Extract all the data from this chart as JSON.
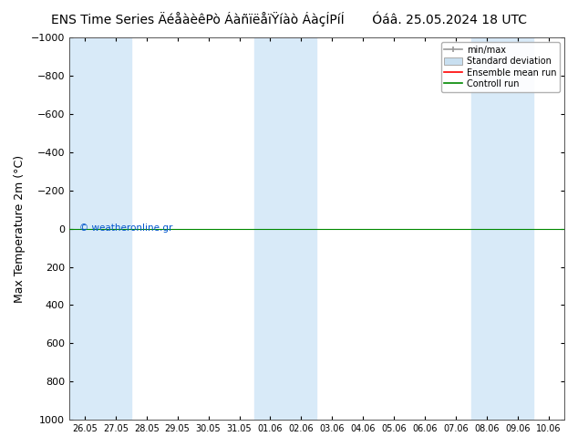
{
  "title": "ENS Time Series ÄéåàèêPò ÁàñïëåïŸíàò ÁàçÍPíÍ       Óáâ. 25.05.2024 18 UTC",
  "ylabel": "Max Temperature 2m (°C)",
  "ylim_min": -1000,
  "ylim_max": 1000,
  "yticks": [
    -1000,
    -800,
    -600,
    -400,
    -200,
    0,
    200,
    400,
    600,
    800,
    1000
  ],
  "xtick_labels": [
    "26.05",
    "27.05",
    "28.05",
    "29.05",
    "30.05",
    "31.05",
    "01.06",
    "02.06",
    "03.06",
    "04.06",
    "05.06",
    "06.06",
    "07.06",
    "08.06",
    "09.06",
    "10.06"
  ],
  "background_color": "#ffffff",
  "plot_bg_color": "#ffffff",
  "shaded_indices": [
    0,
    1,
    6,
    7,
    13,
    14
  ],
  "shaded_color": "#d8eaf8",
  "green_line_y": 0,
  "red_line_y": 0,
  "watermark": "© weatheronline.gr",
  "watermark_color": "#0055cc",
  "legend_entries": [
    "min/max",
    "Standard deviation",
    "Ensemble mean run",
    "Controll run"
  ],
  "minmax_color": "#999999",
  "std_color": "#c8dff0",
  "ensemble_color": "#ff0000",
  "control_color": "#008800",
  "title_fontsize": 10,
  "axis_label_fontsize": 9,
  "tick_fontsize": 8,
  "xtick_fontsize": 7
}
